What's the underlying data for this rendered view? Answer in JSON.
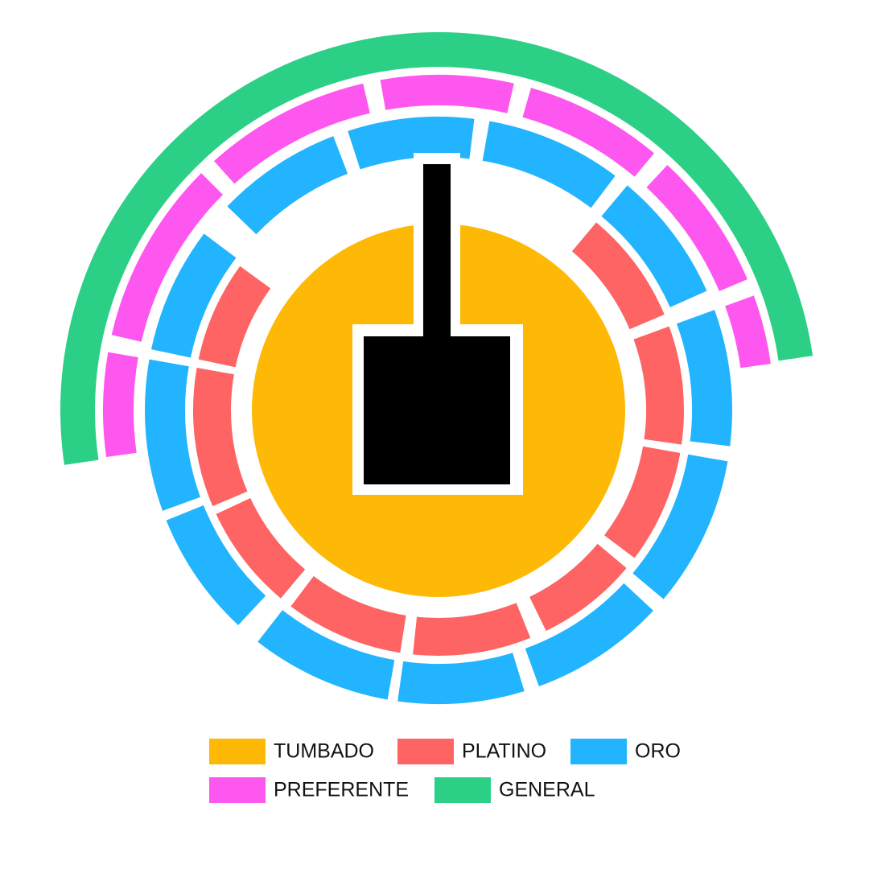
{
  "legend": [
    {
      "label": "TUMBADO",
      "color": "#fdb905"
    },
    {
      "label": "PLATINO",
      "color": "#fe6464"
    },
    {
      "label": "ORO",
      "color": "#22b4fe"
    },
    {
      "label": "PREFERENTE",
      "color": "#fe57ef"
    },
    {
      "label": "GENERAL",
      "color": "#2ccf86"
    }
  ]
}
